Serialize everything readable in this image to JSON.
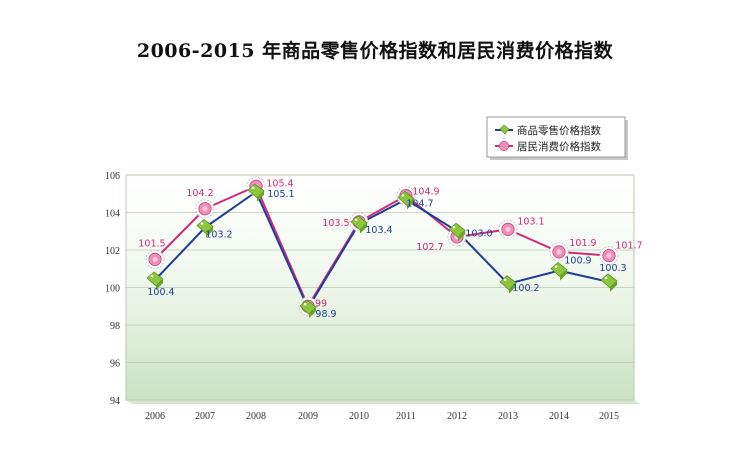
{
  "chart_data": {
    "type": "line",
    "title": "2006-2015 年商品零售价格指数和居民消费价格指数",
    "xlabel": "",
    "ylabel": "",
    "categories": [
      "2006",
      "2007",
      "2008",
      "2009",
      "2010",
      "2011",
      "2012",
      "2013",
      "2014",
      "2015"
    ],
    "ylim": [
      94,
      106
    ],
    "yticks": [
      "94",
      "96",
      "98",
      "100",
      "102",
      "104",
      "106"
    ],
    "grid": true,
    "legend_position": "top-right",
    "series": [
      {
        "name": "商品零售价格指数",
        "color": "#1f3f95",
        "marker_color": "#8cc63f",
        "values": [
          100.4,
          103.2,
          105.1,
          98.9,
          103.4,
          104.7,
          103.0,
          100.2,
          100.9,
          100.3
        ],
        "labels": [
          "100.4",
          "103.2",
          "105.1",
          "98.9",
          "103.4",
          "104.7",
          "103.0",
          "100.2",
          "100.9",
          "100.3"
        ]
      },
      {
        "name": "居民消费价格指数",
        "color": "#d4287a",
        "marker_color": "#ef8fb9",
        "values": [
          101.5,
          104.2,
          105.4,
          99,
          103.5,
          104.9,
          102.7,
          103.1,
          101.9,
          101.7
        ],
        "labels": [
          "101.5",
          "104.2",
          "105.4",
          "99",
          "103.5",
          "104.9",
          "102.7",
          "103.1",
          "101.9",
          "101.7"
        ]
      }
    ]
  }
}
